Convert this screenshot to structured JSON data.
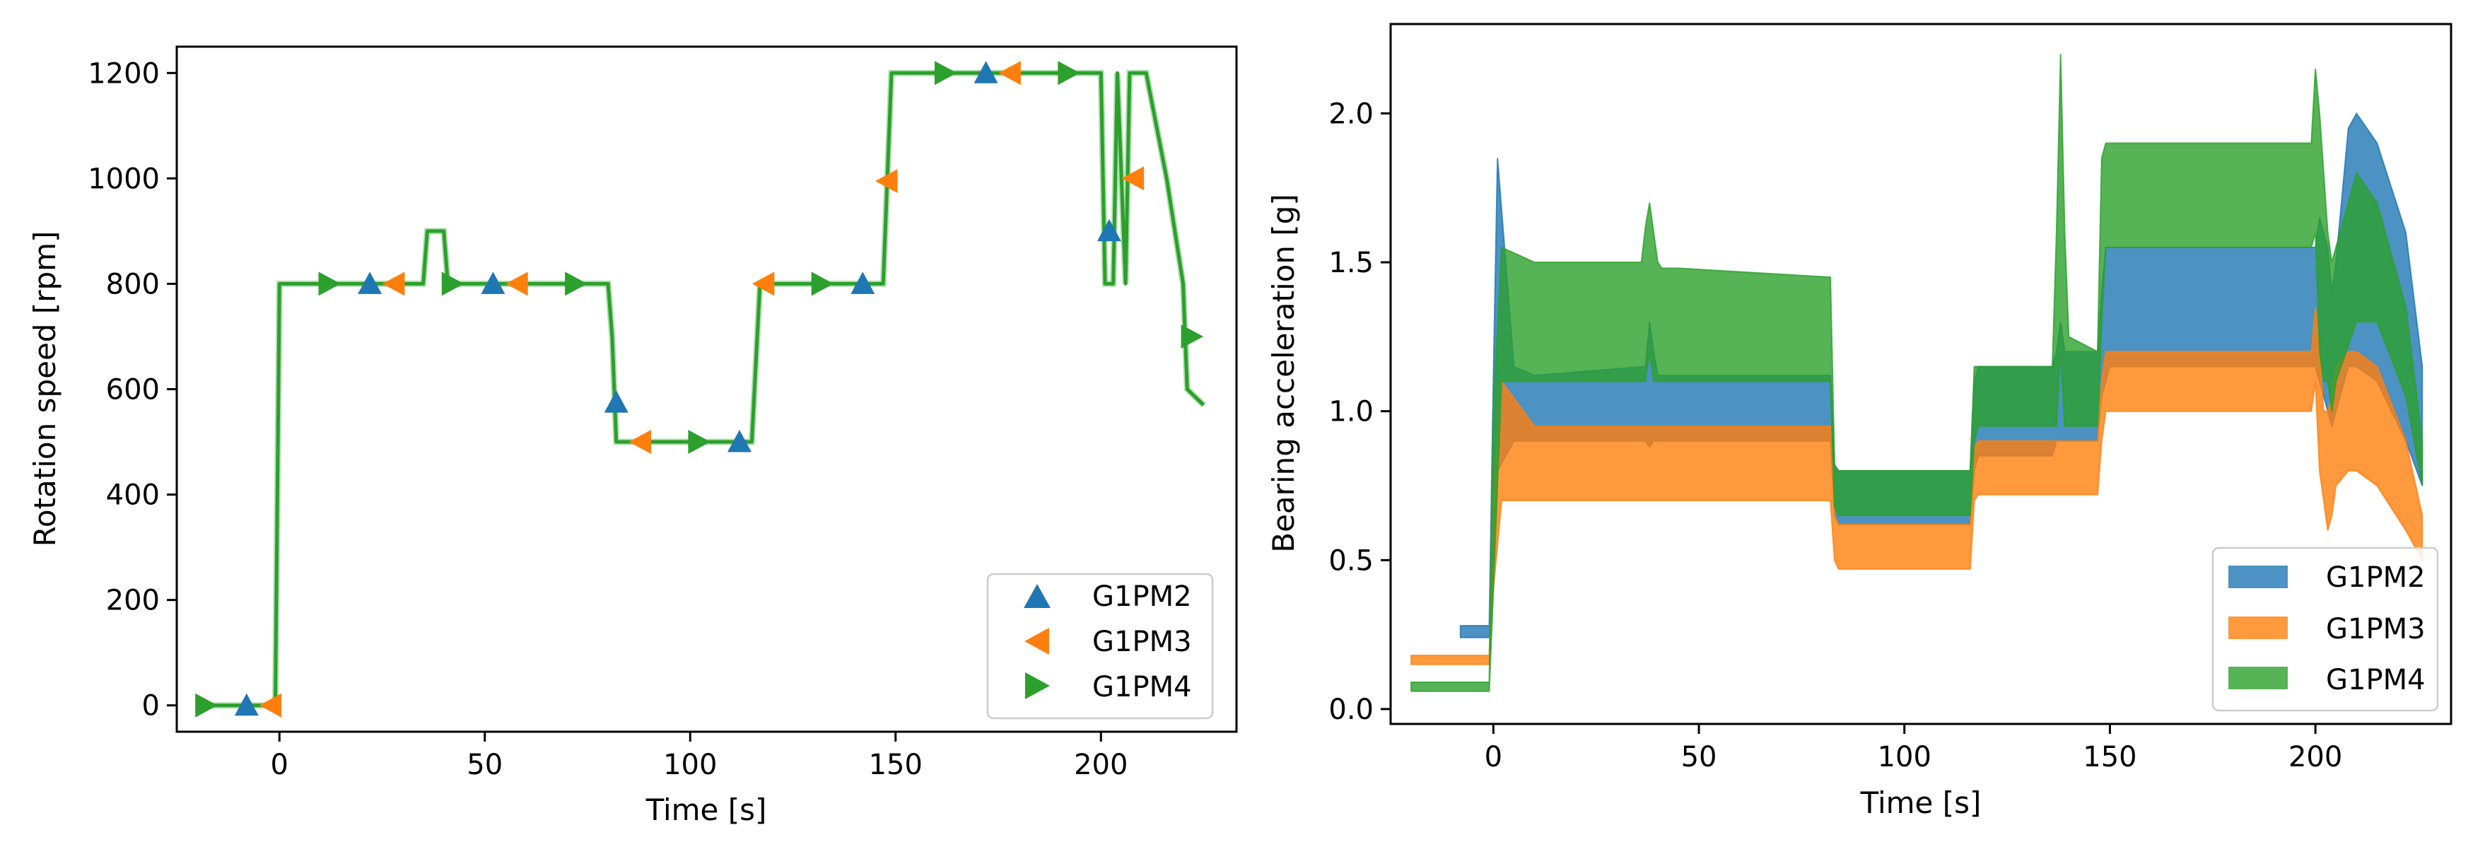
{
  "figure": {
    "left_chart": {
      "type": "line",
      "xlabel": "Time [s]",
      "ylabel": "Rotation speed [rpm]",
      "xlim": [
        -25,
        233
      ],
      "ylim": [
        -50,
        1250
      ],
      "xticks": [
        0,
        50,
        100,
        150,
        200
      ],
      "xtick_labels": [
        "0",
        "50",
        "100",
        "150",
        "200"
      ],
      "yticks": [
        0,
        200,
        400,
        600,
        800,
        1000,
        1200
      ],
      "ytick_labels": [
        "0",
        "200",
        "400",
        "600",
        "800",
        "1000",
        "1200"
      ],
      "legend_position": "lower-right",
      "line_color": "#2ca02c",
      "speed_profile": {
        "x": [
          -20,
          -2,
          -1,
          0,
          35,
          36,
          40,
          41,
          80,
          81,
          82,
          115,
          116,
          117,
          147,
          148,
          149,
          200,
          200.5,
          201,
          203,
          203.5,
          204,
          206,
          206.5,
          207,
          211,
          216,
          220,
          221,
          225
        ],
        "y": [
          0,
          0,
          0,
          800,
          800,
          900,
          900,
          800,
          800,
          700,
          500,
          500,
          650,
          800,
          800,
          1000,
          1200,
          1200,
          1000,
          800,
          800,
          1000,
          1200,
          800,
          1000,
          1200,
          1200,
          1000,
          800,
          600,
          570
        ]
      },
      "series": [
        {
          "name": "G1PM2",
          "marker": "triangle-up",
          "color": "#1f77b4",
          "x": [
            -8,
            22,
            52,
            82,
            112,
            142,
            172,
            202
          ],
          "y": [
            0,
            800,
            800,
            575,
            500,
            800,
            1200,
            900
          ]
        },
        {
          "name": "G1PM3",
          "marker": "triangle-left",
          "color": "#ff7f0e",
          "x": [
            -2,
            28,
            58,
            88,
            118,
            148,
            178,
            208
          ],
          "y": [
            0,
            800,
            800,
            500,
            800,
            995,
            1200,
            1000
          ]
        },
        {
          "name": "G1PM4",
          "marker": "triangle-right",
          "color": "#2ca02c",
          "x": [
            -18,
            12,
            42,
            72,
            102,
            132,
            162,
            192,
            222
          ],
          "y": [
            0,
            800,
            800,
            800,
            500,
            800,
            1200,
            1200,
            700
          ]
        }
      ]
    },
    "right_chart": {
      "type": "area",
      "xlabel": "Time [s]",
      "ylabel": "Bearing acceleration [g]",
      "xlim": [
        -25,
        233
      ],
      "ylim": [
        -0.05,
        2.3
      ],
      "xticks": [
        0,
        50,
        100,
        150,
        200
      ],
      "xtick_labels": [
        "0",
        "50",
        "100",
        "150",
        "200"
      ],
      "yticks": [
        0.0,
        0.5,
        1.0,
        1.5,
        2.0
      ],
      "ytick_labels": [
        "0.0",
        "0.5",
        "1.0",
        "1.5",
        "2.0"
      ],
      "legend_position": "lower-right",
      "series": [
        {
          "name": "G1PM2",
          "color": "#1f77b4",
          "opacity": 0.8,
          "x": [
            -8,
            -1.5,
            -1,
            0,
            1,
            5,
            10,
            37,
            38,
            39,
            40,
            45,
            82,
            83,
            84,
            116,
            117,
            118,
            136,
            137,
            138,
            139,
            147,
            148,
            149,
            150,
            160,
            200,
            201,
            203,
            204,
            205,
            208,
            210,
            215,
            222,
            226
          ],
          "lo": [
            0.24,
            0.24,
            0.24,
            0.5,
            0.8,
            0.9,
            0.9,
            0.9,
            0.88,
            0.9,
            0.9,
            0.9,
            0.9,
            0.65,
            0.62,
            0.62,
            0.8,
            0.85,
            0.85,
            0.9,
            0.9,
            0.9,
            0.9,
            1.05,
            1.1,
            1.15,
            1.15,
            1.15,
            1.1,
            1.0,
            0.95,
            1.0,
            1.15,
            1.15,
            1.1,
            0.9,
            0.75
          ],
          "hi": [
            0.28,
            0.28,
            0.28,
            1.1,
            1.85,
            1.15,
            1.12,
            1.15,
            1.3,
            1.2,
            1.12,
            1.12,
            1.12,
            0.82,
            0.8,
            0.8,
            1.1,
            1.15,
            1.15,
            1.2,
            1.3,
            1.2,
            1.2,
            1.4,
            1.55,
            1.55,
            1.55,
            1.55,
            1.65,
            1.55,
            1.4,
            1.5,
            1.95,
            2.0,
            1.9,
            1.6,
            1.15
          ]
        },
        {
          "name": "G1PM3",
          "color": "#ff7f0e",
          "opacity": 0.8,
          "x": [
            -20,
            -1.5,
            -1,
            0,
            2,
            10,
            82,
            83,
            84,
            116,
            117,
            118,
            147,
            148,
            149,
            150,
            199,
            200,
            201,
            202,
            203,
            204,
            205,
            208,
            210,
            215,
            222,
            226
          ],
          "lo": [
            0.15,
            0.15,
            0.15,
            0.4,
            0.7,
            0.7,
            0.7,
            0.5,
            0.47,
            0.47,
            0.7,
            0.72,
            0.72,
            0.9,
            1.0,
            1.0,
            1.0,
            1.1,
            0.8,
            0.7,
            0.6,
            0.65,
            0.75,
            0.8,
            0.8,
            0.75,
            0.6,
            0.5
          ],
          "hi": [
            0.18,
            0.18,
            0.18,
            0.7,
            1.1,
            0.95,
            0.95,
            0.65,
            0.62,
            0.62,
            0.88,
            0.9,
            0.9,
            1.1,
            1.2,
            1.2,
            1.2,
            1.35,
            1.2,
            1.0,
            1.0,
            1.05,
            1.15,
            1.2,
            1.2,
            1.15,
            0.9,
            0.65
          ]
        },
        {
          "name": "G1PM4",
          "color": "#2ca02c",
          "opacity": 0.8,
          "x": [
            -20,
            -1.5,
            -1,
            0,
            2,
            10,
            36,
            37,
            38,
            39,
            40,
            41,
            45,
            82,
            83,
            84,
            116,
            117,
            118,
            136,
            137,
            138,
            139,
            140,
            147,
            148,
            149,
            150,
            160,
            199,
            200,
            201,
            202,
            203,
            204,
            205,
            210,
            215,
            222,
            226
          ],
          "lo": [
            0.06,
            0.06,
            0.06,
            0.4,
            1.1,
            1.1,
            1.1,
            1.1,
            1.2,
            1.1,
            1.1,
            1.1,
            1.1,
            1.1,
            0.68,
            0.65,
            0.65,
            0.9,
            0.95,
            0.95,
            0.95,
            1.2,
            0.95,
            0.95,
            0.95,
            1.3,
            1.55,
            1.55,
            1.55,
            1.55,
            1.6,
            1.2,
            1.1,
            1.1,
            1.0,
            1.1,
            1.3,
            1.3,
            1.05,
            0.75
          ],
          "hi": [
            0.09,
            0.09,
            0.09,
            1.0,
            1.55,
            1.5,
            1.5,
            1.62,
            1.7,
            1.6,
            1.5,
            1.48,
            1.48,
            1.45,
            0.82,
            0.8,
            0.8,
            1.15,
            1.15,
            1.15,
            1.6,
            2.2,
            1.6,
            1.25,
            1.2,
            1.85,
            1.9,
            1.9,
            1.9,
            1.9,
            2.15,
            2.0,
            1.8,
            1.6,
            1.5,
            1.55,
            1.8,
            1.7,
            1.35,
            0.9
          ]
        }
      ]
    }
  }
}
